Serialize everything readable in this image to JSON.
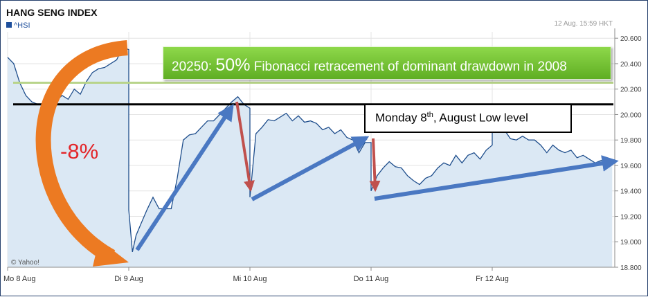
{
  "header": {
    "title": "HANG SENG INDEX",
    "symbol": "^HSI",
    "timestamp": "12 Aug. 15:59 HKT"
  },
  "source": "© Yahoo!",
  "annotations": {
    "fib_level": "20250:",
    "fib_pct": "50%",
    "fib_text": "Fibonacci retracement of dominant drawdown in 2008",
    "monday_pre": "Monday 8",
    "monday_sup": "th",
    "monday_post": ", August Low level",
    "drop": "-8%"
  },
  "colors": {
    "line": "#1f4e8c",
    "area": "#dbe8f4",
    "arrow_blue": "#4a78c2",
    "arrow_red": "#c0504d",
    "arrow_orange": "#ec7a22",
    "fib_green": "#6fbf30",
    "fib_line": "#b8d48a"
  },
  "chart_data": {
    "type": "area",
    "title": "HANG SENG INDEX",
    "categories": [
      "Mo 8 Aug",
      "Di 9 Aug",
      "Mi 10 Aug",
      "Do 11 Aug",
      "Fr 12 Aug"
    ],
    "ylim": [
      18800,
      20650
    ],
    "yticks": [
      "18.800",
      "19.000",
      "19.200",
      "19.400",
      "19.600",
      "19.800",
      "20.000",
      "20.200",
      "20.400",
      "20.600"
    ],
    "grid": true,
    "horizontal_lines": [
      {
        "value": 20250,
        "label": "Fibonacci 50%"
      },
      {
        "value": 20080,
        "label": "Monday 8th August low"
      }
    ],
    "series": [
      {
        "x": [
          0,
          0.05,
          0.1,
          0.15,
          0.2,
          0.25,
          0.3,
          0.35,
          0.4,
          0.45,
          0.5,
          0.55,
          0.6,
          0.65,
          0.7,
          0.75,
          0.8,
          0.85,
          0.9,
          0.95,
          1.0,
          1.0,
          1.03,
          1.06,
          1.1,
          1.15,
          1.2,
          1.25,
          1.3,
          1.35,
          1.4,
          1.45,
          1.5,
          1.55,
          1.6,
          1.65,
          1.7,
          1.75,
          1.8,
          1.85,
          1.9,
          1.95,
          2.0,
          2.0,
          2.05,
          2.1,
          2.15,
          2.2,
          2.25,
          2.3,
          2.35,
          2.4,
          2.45,
          2.5,
          2.55,
          2.6,
          2.65,
          2.7,
          2.75,
          2.8,
          2.85,
          2.9,
          2.95,
          3.0,
          3.0,
          3.05,
          3.1,
          3.15,
          3.2,
          3.25,
          3.3,
          3.35,
          3.4,
          3.45,
          3.5,
          3.55,
          3.6,
          3.65,
          3.7,
          3.75,
          3.8,
          3.85,
          3.9,
          3.95,
          4.0,
          4.0,
          4.05,
          4.1,
          4.15,
          4.2,
          4.25,
          4.3,
          4.35,
          4.4,
          4.45,
          4.5,
          4.55,
          4.6,
          4.65,
          4.7,
          4.75,
          4.8,
          4.85,
          4.9,
          4.95,
          4.99
        ],
        "values": [
          20450,
          20400,
          20250,
          20150,
          20100,
          20080,
          20080,
          20100,
          20110,
          20150,
          20120,
          20200,
          20160,
          20260,
          20330,
          20360,
          20370,
          20400,
          20430,
          20530,
          20510,
          19250,
          18920,
          19050,
          19140,
          19250,
          19350,
          19260,
          19260,
          19260,
          19500,
          19800,
          19840,
          19850,
          19900,
          19950,
          19950,
          20000,
          20050,
          20100,
          20140,
          20080,
          20050,
          19350,
          19850,
          19900,
          19960,
          19950,
          19980,
          20010,
          19950,
          19990,
          19940,
          19950,
          19930,
          19880,
          19900,
          19850,
          19880,
          19820,
          19800,
          19700,
          19780,
          19780,
          19400,
          19520,
          19580,
          19630,
          19590,
          19580,
          19520,
          19480,
          19450,
          19500,
          19520,
          19580,
          19620,
          19600,
          19680,
          19620,
          19680,
          19700,
          19650,
          19720,
          19760,
          19920,
          19950,
          19880,
          19810,
          19800,
          19830,
          19800,
          19800,
          19760,
          19700,
          19760,
          19720,
          19700,
          19720,
          19660,
          19680,
          19650,
          19620,
          19640,
          19640,
          19620
        ]
      }
    ]
  }
}
